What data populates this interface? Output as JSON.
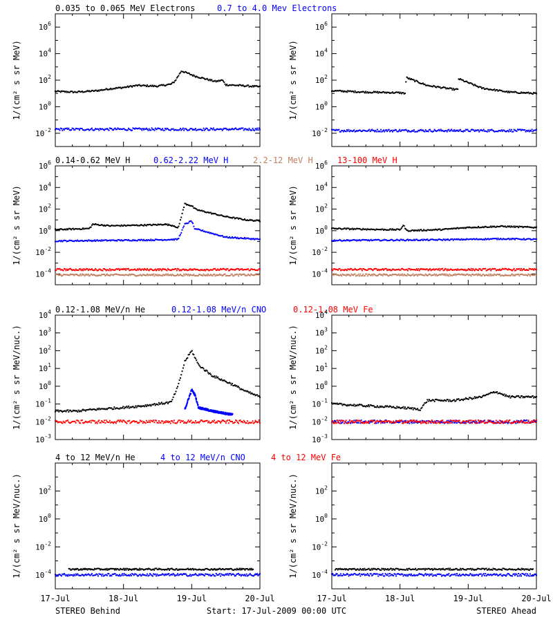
{
  "footer": {
    "left": "STEREO Behind",
    "center": "Start: 17-Jul-2009 00:00 UTC",
    "right": "STEREO Ahead"
  },
  "x_ticks": [
    "17-Jul",
    "18-Jul",
    "19-Jul",
    "20-Jul"
  ],
  "colors": {
    "black": "#000000",
    "blue": "#0000ff",
    "brown": "#c08060",
    "red": "#ff0000"
  },
  "chart_data": [
    {
      "type": "scatter",
      "row": 1,
      "ylabel": "1/(cm² s sr MeV)",
      "ylim_log10": [
        -3,
        7
      ],
      "yticks_log10": [
        -2,
        0,
        2,
        4,
        6
      ],
      "legend": [
        {
          "text": "0.035 to 0.065 MeV Electrons",
          "color": "black"
        },
        {
          "text": "0.7 to 4.0 Mev Electrons",
          "color": "blue"
        }
      ],
      "panels": [
        {
          "name": "STEREO Behind",
          "series": [
            {
              "name": "0.035 to 0.065 MeV Electrons",
              "color": "black",
              "x": [
                0,
                0.3,
                0.6,
                0.8,
                1.0,
                1.2,
                1.5,
                1.7,
                1.75,
                1.85,
                1.95,
                2.05,
                2.2,
                2.35,
                2.45,
                2.5,
                2.7,
                3.0
              ],
              "log10_y": [
                1.15,
                1.1,
                1.2,
                1.35,
                1.45,
                1.6,
                1.55,
                1.7,
                1.9,
                2.7,
                2.5,
                2.3,
                2.1,
                1.9,
                2.0,
                1.65,
                1.6,
                1.5
              ]
            },
            {
              "name": "0.7 to 4.0 Mev Electrons",
              "color": "blue",
              "x": [
                0,
                3.0
              ],
              "log10_y": [
                -1.7,
                -1.7
              ]
            }
          ]
        },
        {
          "name": "STEREO Ahead",
          "series": [
            {
              "name": "0.035 to 0.065 MeV Electrons",
              "color": "black",
              "x": [
                0,
                0.5,
                1.0,
                1.08,
                1.09,
                1.4,
                1.8,
                1.85,
                1.86,
                2.2,
                2.6,
                3.0
              ],
              "log10_y": [
                1.2,
                1.1,
                1.05,
                1.0,
                2.2,
                1.6,
                1.3,
                1.3,
                2.1,
                1.4,
                1.1,
                1.0
              ]
            },
            {
              "name": "0.7 to 4.0 Mev Electrons",
              "color": "blue",
              "x": [
                0,
                3.0
              ],
              "log10_y": [
                -1.8,
                -1.8
              ]
            }
          ]
        }
      ]
    },
    {
      "type": "scatter",
      "row": 2,
      "ylabel": "1/(cm² s sr MeV)",
      "ylim_log10": [
        -5,
        6
      ],
      "yticks_log10": [
        -4,
        -2,
        0,
        2,
        4,
        6
      ],
      "legend": [
        {
          "text": "0.14-0.62 MeV H",
          "color": "black"
        },
        {
          "text": "0.62-2.22 MeV H",
          "color": "blue"
        },
        {
          "text": "2.2-12 MeV H",
          "color": "brown"
        },
        {
          "text": "13-100 MeV H",
          "color": "red"
        }
      ],
      "panels": [
        {
          "name": "STEREO Behind",
          "series": [
            {
              "name": "0.14-0.62 MeV H",
              "color": "black",
              "x": [
                0,
                0.5,
                0.55,
                0.8,
                1.2,
                1.5,
                1.6,
                1.75,
                1.8,
                1.9,
                2.0,
                2.05,
                2.1,
                2.5,
                2.8,
                3.0
              ],
              "log10_y": [
                0.1,
                0.2,
                0.6,
                0.45,
                0.5,
                0.55,
                0.6,
                0.45,
                0.2,
                2.5,
                2.3,
                2.0,
                1.9,
                1.3,
                1.0,
                0.9
              ]
            },
            {
              "name": "0.62-2.22 MeV H",
              "color": "blue",
              "x": [
                0,
                0.8,
                1.5,
                1.8,
                1.9,
                2.0,
                2.05,
                2.1,
                2.5,
                3.0
              ],
              "log10_y": [
                -0.95,
                -0.9,
                -0.85,
                -0.8,
                0.6,
                0.9,
                0.1,
                0.1,
                -0.6,
                -0.8
              ]
            },
            {
              "name": "2.2-12 MeV H",
              "color": "brown",
              "x": [
                0,
                3.0
              ],
              "log10_y": [
                -4.1,
                -4.1
              ]
            },
            {
              "name": "13-100 MeV H",
              "color": "red",
              "x": [
                0,
                3.0
              ],
              "log10_y": [
                -3.6,
                -3.6
              ]
            }
          ]
        },
        {
          "name": "STEREO Ahead",
          "series": [
            {
              "name": "0.14-0.62 MeV H",
              "color": "black",
              "x": [
                0,
                0.8,
                1.0,
                1.05,
                1.1,
                1.6,
                2.0,
                2.5,
                3.0
              ],
              "log10_y": [
                0.2,
                0.1,
                0.1,
                0.5,
                0.0,
                0.1,
                0.3,
                0.4,
                0.3
              ]
            },
            {
              "name": "0.62-2.22 MeV H",
              "color": "blue",
              "x": [
                0,
                1.5,
                2.5,
                3.0
              ],
              "log10_y": [
                -0.9,
                -0.85,
                -0.75,
                -0.8
              ]
            },
            {
              "name": "2.2-12 MeV H",
              "color": "brown",
              "x": [
                0,
                3.0
              ],
              "log10_y": [
                -4.1,
                -4.1
              ]
            },
            {
              "name": "13-100 MeV H",
              "color": "red",
              "x": [
                0,
                3.0
              ],
              "log10_y": [
                -3.6,
                -3.6
              ]
            }
          ]
        }
      ]
    },
    {
      "type": "scatter",
      "row": 3,
      "ylabel": "1/(cm² s sr MeV/nuc.)",
      "ylim_log10": [
        -3,
        4
      ],
      "yticks_log10": [
        -3,
        -2,
        -1,
        0,
        1,
        2,
        3,
        4
      ],
      "legend": [
        {
          "text": "0.12-1.08 MeV/n He",
          "color": "black"
        },
        {
          "text": "0.12-1.08 MeV/n CNO",
          "color": "blue"
        },
        {
          "text": "0.12-1.08 MeV Fe",
          "color": "red"
        }
      ],
      "panels": [
        {
          "name": "STEREO Behind",
          "series": [
            {
              "name": "0.12-1.08 MeV/n He",
              "color": "black",
              "x": [
                0,
                0.3,
                0.6,
                1.0,
                1.3,
                1.5,
                1.7,
                1.8,
                1.9,
                2.0,
                2.05,
                2.1,
                2.3,
                2.6,
                2.8,
                3.0
              ],
              "log10_y": [
                -1.4,
                -1.4,
                -1.3,
                -1.2,
                -1.1,
                -1.0,
                -0.9,
                0.0,
                1.4,
                2.0,
                1.6,
                1.2,
                0.6,
                0.1,
                -0.3,
                -0.6
              ]
            },
            {
              "name": "0.12-1.08 MeV/n CNO",
              "color": "blue",
              "x": [
                1.9,
                2.0,
                2.05,
                2.1,
                2.3,
                2.6
              ],
              "log10_y": [
                -1.3,
                -0.2,
                -0.5,
                -1.2,
                -1.4,
                -1.6
              ]
            },
            {
              "name": "0.12-1.08 MeV Fe",
              "color": "red",
              "x": [
                0,
                3.0
              ],
              "log10_y": [
                -2.0,
                -2.0
              ]
            }
          ]
        },
        {
          "name": "STEREO Ahead",
          "series": [
            {
              "name": "0.12-1.08 MeV/n He",
              "color": "black",
              "x": [
                0,
                0.5,
                1.0,
                1.3,
                1.4,
                1.8,
                2.2,
                2.4,
                2.6,
                3.0
              ],
              "log10_y": [
                -1.0,
                -1.1,
                -1.2,
                -1.3,
                -0.8,
                -0.8,
                -0.6,
                -0.3,
                -0.6,
                -0.6
              ]
            },
            {
              "name": "0.12-1.08 MeV/n CNO",
              "color": "blue",
              "x": [
                0,
                3.0
              ],
              "log10_y": [
                -2.0,
                -2.0
              ]
            },
            {
              "name": "0.12-1.08 MeV Fe",
              "color": "red",
              "x": [
                0,
                3.0
              ],
              "log10_y": [
                -2.0,
                -2.0
              ]
            }
          ]
        }
      ]
    },
    {
      "type": "scatter",
      "row": 4,
      "ylabel": "1/(cm² s sr MeV/nuc.)",
      "ylim_log10": [
        -5,
        4
      ],
      "yticks_log10": [
        -4,
        -2,
        0,
        2
      ],
      "legend": [
        {
          "text": "4 to 12 MeV/n He",
          "color": "black"
        },
        {
          "text": "4 to 12 MeV/n CNO",
          "color": "blue"
        },
        {
          "text": "4 to 12 MeV Fe",
          "color": "red"
        }
      ],
      "panels": [
        {
          "name": "STEREO Behind",
          "series": [
            {
              "name": "4 to 12 MeV/n He",
              "color": "black",
              "x": [
                0.2,
                0.7,
                0.75,
                1.3,
                1.6,
                2.3,
                2.9
              ],
              "log10_y": [
                -3.6,
                -3.6,
                -3.6,
                -3.6,
                -3.6,
                -3.6,
                -3.6
              ]
            },
            {
              "name": "4 to 12 MeV/n CNO",
              "color": "blue",
              "x": [
                0,
                3.0
              ],
              "log10_y": [
                -4.0,
                -4.0
              ]
            }
          ]
        },
        {
          "name": "STEREO Ahead",
          "series": [
            {
              "name": "4 to 12 MeV/n He",
              "color": "black",
              "x": [
                0.05,
                0.25,
                1.0,
                1.6,
                2.2,
                2.5,
                2.8,
                2.95
              ],
              "log10_y": [
                -3.6,
                -3.6,
                -3.6,
                -3.6,
                -3.6,
                -3.6,
                -3.6,
                -3.6
              ]
            },
            {
              "name": "4 to 12 MeV/n CNO",
              "color": "blue",
              "x": [
                0,
                3.0
              ],
              "log10_y": [
                -4.0,
                -4.0
              ]
            }
          ]
        }
      ]
    }
  ]
}
